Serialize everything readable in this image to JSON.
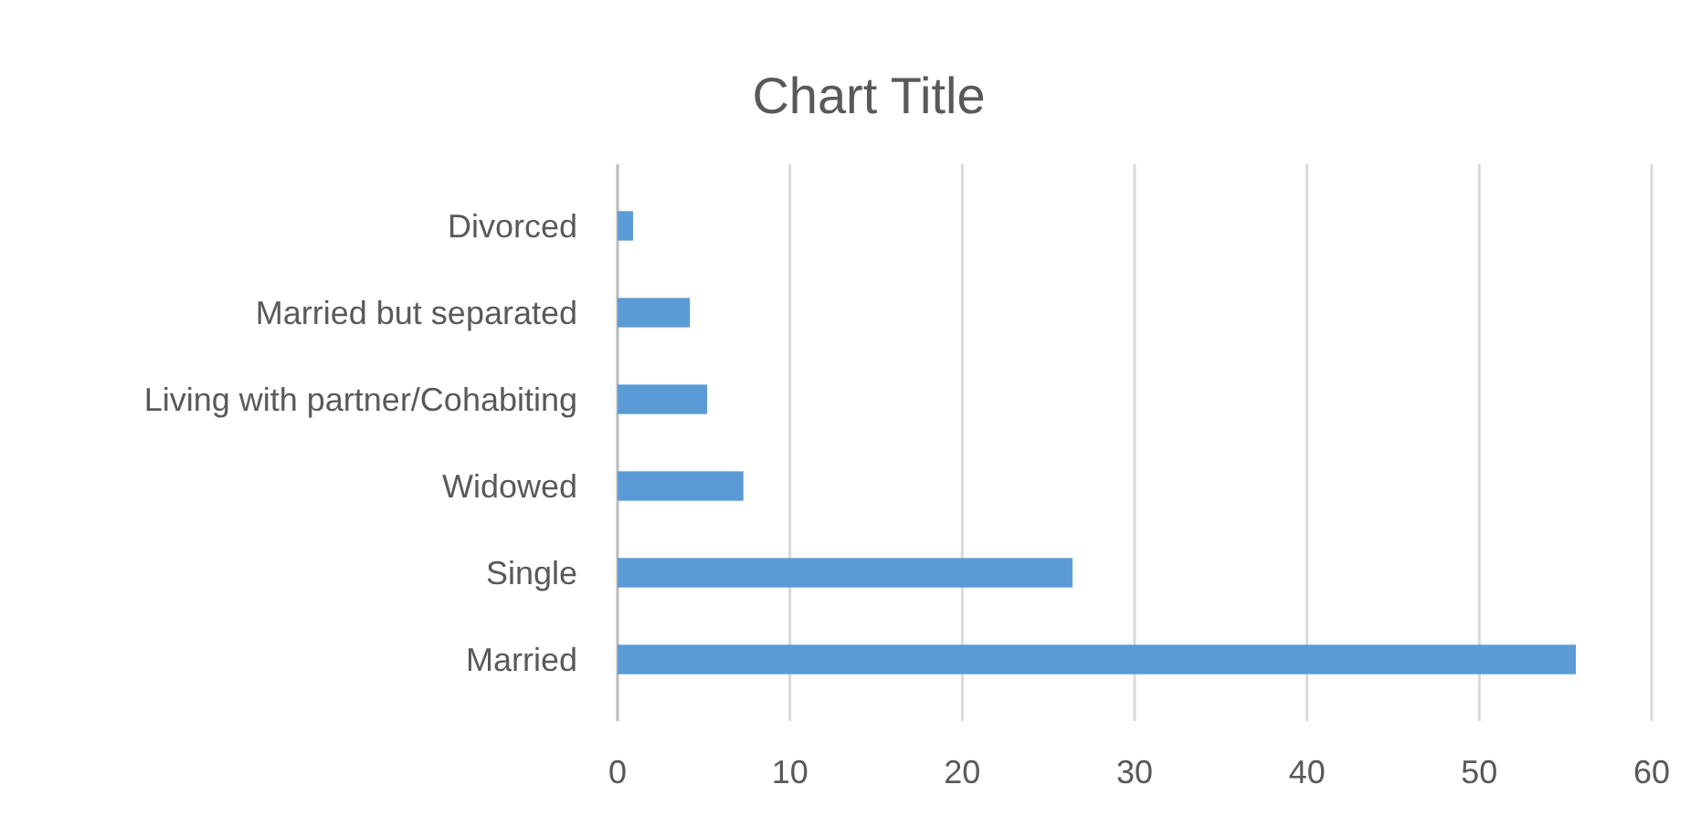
{
  "chart_data": {
    "type": "bar",
    "orientation": "horizontal",
    "title": "Chart Title",
    "categories": [
      "Divorced",
      "Married but separated",
      "Living with partner/Cohabiting",
      "Widowed",
      "Single",
      "Married"
    ],
    "values": [
      0.9,
      4.2,
      5.2,
      7.3,
      26.4,
      55.6
    ],
    "color": "#5b9bd5",
    "xlim": [
      0,
      60
    ],
    "xticks": [
      0,
      10,
      20,
      30,
      40,
      50,
      60
    ],
    "grid": "x"
  }
}
